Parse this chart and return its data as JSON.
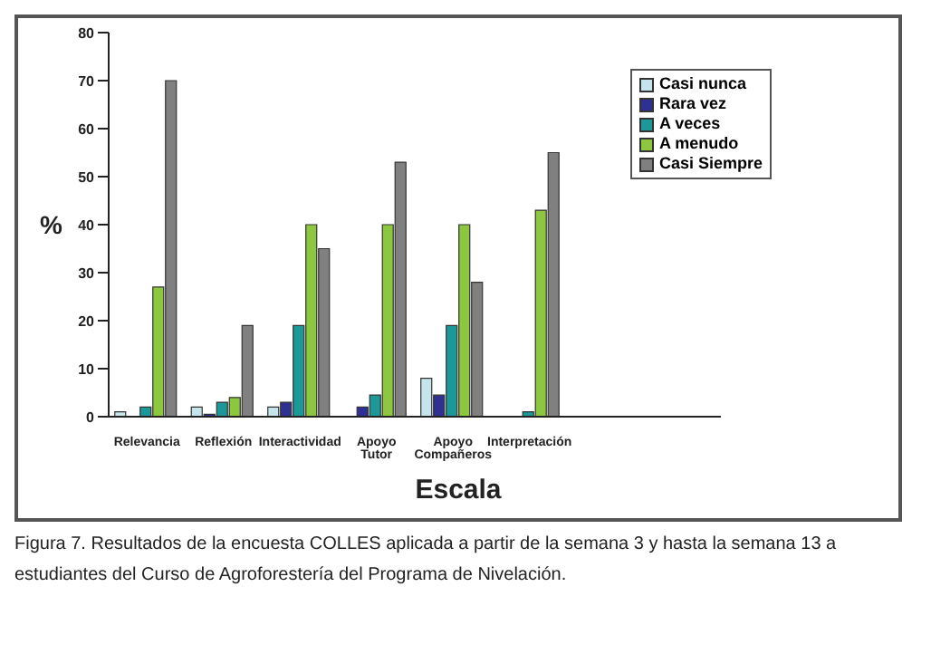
{
  "chart_data": {
    "type": "bar",
    "xlabel": "Escala",
    "ylabel": "%",
    "categories": [
      "Relevancia",
      "Reflexión",
      "Interactividad",
      "Apoyo Tutor",
      "Apoyo Compañeros",
      "Interpretación",
      null,
      null
    ],
    "series": [
      {
        "name": "Casi nunca",
        "color": "#c6e4ec",
        "values": [
          1,
          2,
          2,
          0,
          8,
          0,
          null,
          null
        ]
      },
      {
        "name": "Rara vez",
        "color": "#2e3192",
        "values": [
          0,
          0.5,
          3,
          2,
          4.5,
          0,
          null,
          null
        ]
      },
      {
        "name": "A veces",
        "color": "#1b9897",
        "values": [
          2,
          3,
          19,
          4.5,
          19,
          1,
          null,
          null
        ]
      },
      {
        "name": "A menudo",
        "color": "#8dc63f",
        "values": [
          27,
          4,
          40,
          40,
          40,
          43,
          null,
          null
        ]
      },
      {
        "name": "Casi Siempre",
        "color": "#808080",
        "values": [
          70,
          19,
          35,
          53,
          28,
          55,
          null,
          null
        ]
      }
    ],
    "ylim": [
      0,
      80
    ],
    "yticks": [
      0,
      10,
      20,
      30,
      40,
      50,
      60,
      70,
      80
    ],
    "grid": false,
    "legend": "top right",
    "annotations": [
      "Figura 7. Resultados de la encuesta COLLES aplicada a partir de la semana 3 y hasta la semana 13 a estudiantes del Curso de Agroforestería del Programa de Nivelación."
    ]
  }
}
